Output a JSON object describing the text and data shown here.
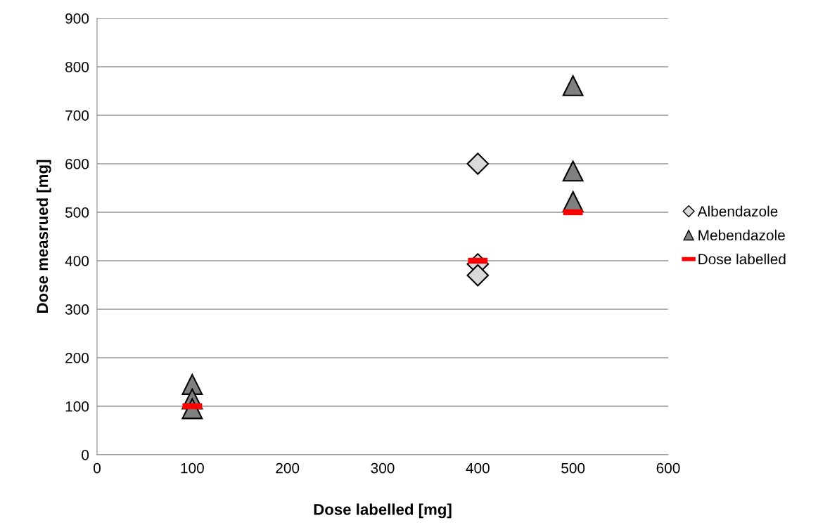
{
  "chart_data": {
    "type": "scatter",
    "xlabel": "Dose labelled [mg]",
    "ylabel": "Dose measrued [mg]",
    "xlim": [
      0,
      600
    ],
    "xticks": [
      0,
      100,
      200,
      300,
      400,
      500,
      600
    ],
    "ylim": [
      0,
      900
    ],
    "yticks": [
      0,
      100,
      200,
      300,
      400,
      500,
      600,
      700,
      800,
      900
    ],
    "grid": "y",
    "legend": "right",
    "series": [
      {
        "name": "Albendazole",
        "color": "#d9d9d9",
        "marker": "diamond",
        "x": [
          400,
          400,
          400
        ],
        "values": [
          600,
          393,
          370
        ]
      },
      {
        "name": "Mebendazole",
        "color": "#808080",
        "marker": "triangle",
        "x": [
          100,
          100,
          100,
          500,
          500,
          500
        ],
        "values": [
          145,
          115,
          95,
          761,
          585,
          522
        ]
      },
      {
        "name": "Dose labelled",
        "color": "#ff0000",
        "marker": "square",
        "x": [
          100,
          400,
          500
        ],
        "values": [
          100,
          400,
          500
        ]
      }
    ]
  }
}
